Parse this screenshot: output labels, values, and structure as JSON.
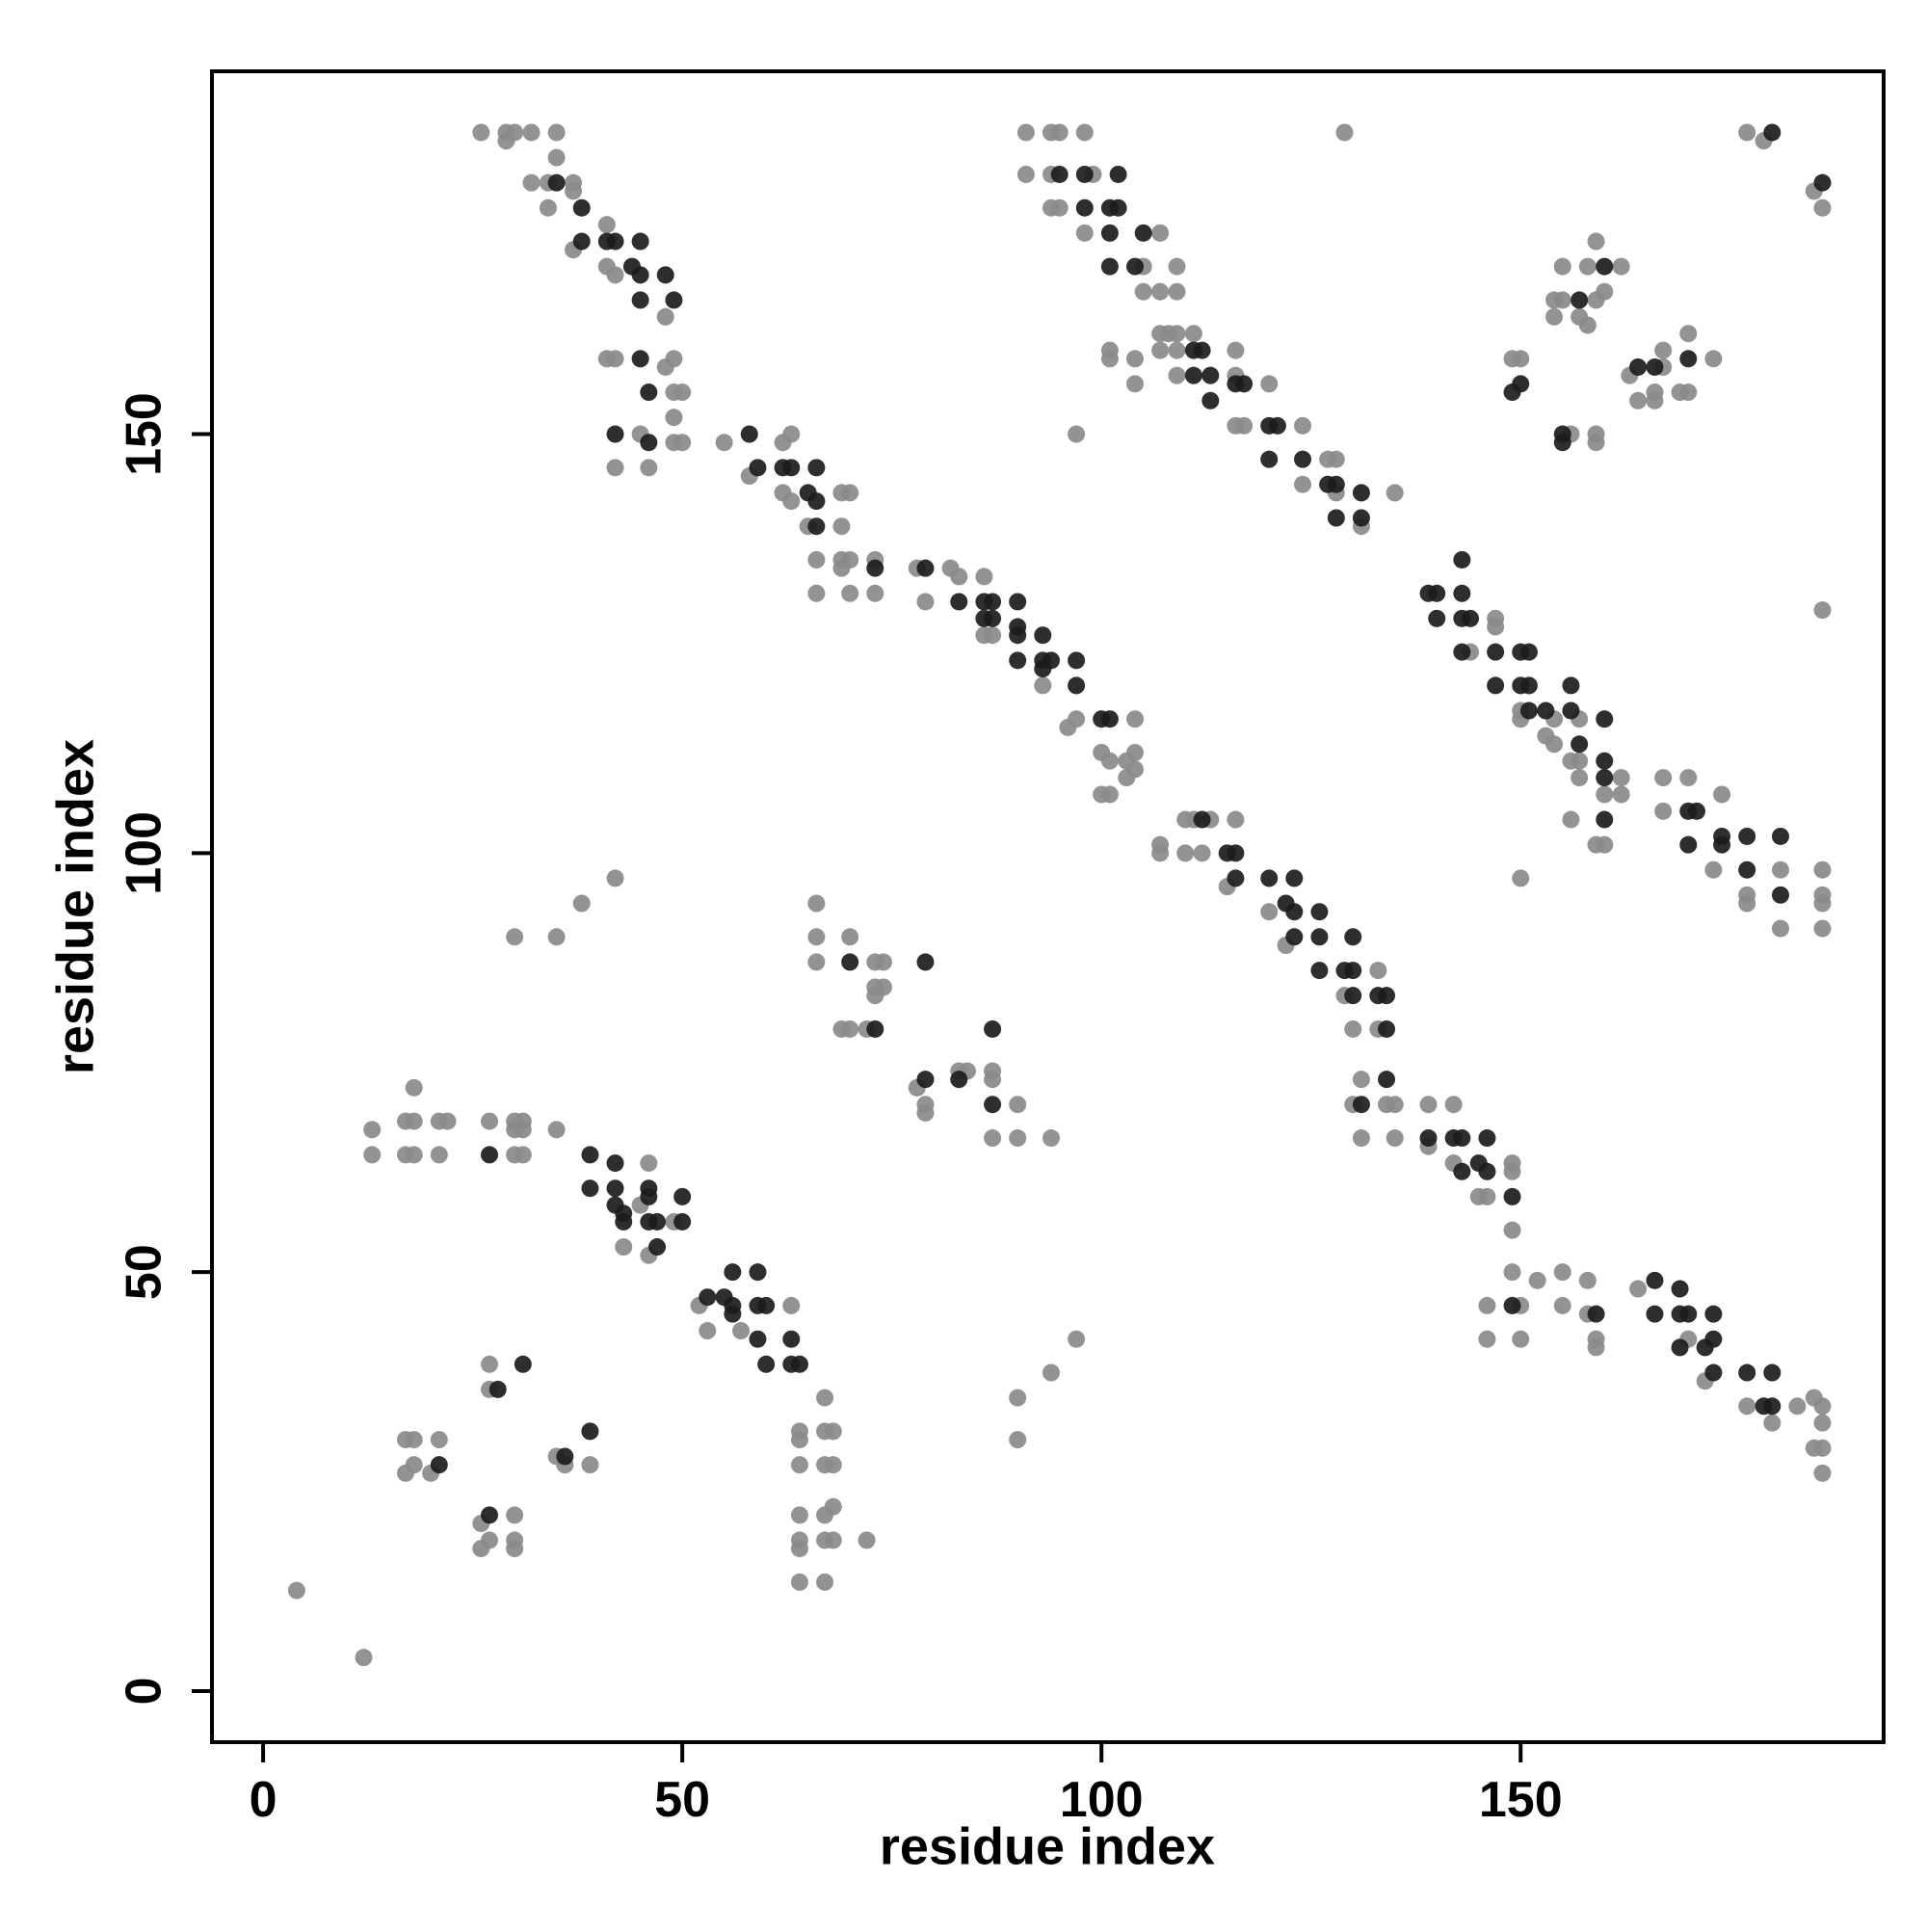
{
  "chart_data": {
    "type": "scatter",
    "x_label": "residue index",
    "y_label": "residue index",
    "xlim": [
      -6.1,
      193.3
    ],
    "ylim": [
      -6.1,
      193.3
    ],
    "xticks": [
      0,
      50,
      100,
      150
    ],
    "yticks": [
      0,
      50,
      100,
      150
    ],
    "series": [
      {
        "color": "#8a8a8a",
        "x": [
          26,
          29,
          30,
          32,
          35,
          29,
          35,
          32,
          34,
          37,
          34,
          37,
          37,
          41,
          41,
          42,
          48,
          41,
          42,
          49,
          49,
          50,
          48,
          49,
          45,
          49,
          50,
          42,
          46,
          55,
          62,
          63,
          58,
          62,
          63,
          69,
          70,
          65,
          69,
          66,
          69,
          70,
          73,
          66,
          70,
          73,
          69,
          78,
          82,
          83,
          79,
          86,
          86,
          87,
          93,
          96,
          97,
          104,
          100,
          101,
          103,
          104,
          100,
          101,
          103,
          104,
          107,
          107,
          110,
          111,
          113,
          110,
          112,
          116,
          115,
          120,
          122,
          133,
          129,
          130,
          133,
          131,
          130,
          134,
          135,
          131,
          135,
          139,
          142,
          139,
          142,
          145,
          146,
          149,
          149,
          149,
          149,
          146,
          150,
          146,
          150,
          152,
          155,
          155,
          158,
          158,
          159,
          159,
          164,
          170,
          172,
          177,
          180,
          183,
          185,
          186,
          186,
          185,
          186,
          186,
          45,
          46,
          43,
          46,
          49,
          53,
          57,
          63,
          52,
          13,
          13,
          17,
          18,
          18,
          17,
          18,
          21,
          22,
          21,
          27,
          30,
          31,
          30,
          31,
          30,
          31,
          35,
          17,
          18,
          21,
          17,
          18,
          20,
          27,
          27,
          26,
          26,
          27,
          30,
          30,
          30,
          35,
          36,
          39,
          64,
          64,
          67,
          67,
          68,
          64,
          67,
          68,
          64,
          64,
          64,
          67,
          68,
          67,
          68,
          72,
          64,
          67,
          4,
          12,
          30,
          35,
          38,
          42,
          90,
          90,
          94,
          97,
          97,
          129,
          150,
          186,
          66,
          66,
          66,
          70,
          73,
          74,
          73,
          74,
          73,
          69,
          70,
          72,
          78,
          79,
          79,
          83,
          84,
          87,
          87,
          87,
          90,
          90,
          94,
          91,
          94,
          95,
          98,
          91,
          94,
          99,
          94,
          95,
          98,
          107,
          105,
          109,
          105,
          107,
          109,
          107,
          108,
          109,
          111,
          101,
          101,
          104,
          104,
          107,
          109,
          116,
          109,
          116,
          120,
          116,
          117,
          124,
          127,
          128,
          124,
          128,
          135,
          131,
          147,
          147,
          144,
          150,
          150,
          154,
          153,
          154,
          157,
          156,
          157,
          162,
          157,
          160,
          162,
          156,
          159,
          160,
          167,
          170,
          167,
          174,
          173,
          181,
          177,
          177,
          181,
          186,
          186,
          186,
          186,
          149,
          150,
          154,
          155,
          155,
          154,
          158,
          159,
          162,
          157,
          158,
          159,
          160,
          156,
          159,
          159,
          163,
          167,
          166,
          167,
          170,
          170,
          169,
          173,
          164,
          166,
          177,
          179,
          185,
          186
        ],
        "values": [
          186,
          186,
          186,
          186,
          186,
          185,
          183,
          180,
          180,
          180,
          177,
          179,
          172,
          175,
          170,
          169,
          164,
          159,
          159,
          159,
          155,
          155,
          158,
          152,
          150,
          149,
          149,
          146,
          146,
          149,
          149,
          150,
          145,
          143,
          142,
          143,
          143,
          139,
          139,
          135,
          135,
          135,
          135,
          131,
          131,
          131,
          134,
          134,
          134,
          133,
          130,
          133,
          126,
          126,
          120,
          115,
          116,
          116,
          112,
          111,
          111,
          112,
          107,
          107,
          109,
          110,
          101,
          100,
          104,
          104,
          104,
          100,
          100,
          104,
          96,
          93,
          89,
          86,
          83,
          79,
          79,
          73,
          70,
          70,
          70,
          66,
          66,
          70,
          70,
          65,
          63,
          59,
          59,
          55,
          62,
          63,
          50,
          46,
          46,
          42,
          42,
          49,
          50,
          46,
          49,
          45,
          42,
          41,
          48,
          42,
          37,
          34,
          32,
          34,
          35,
          34,
          32,
          29,
          29,
          26,
          58,
          63,
          53,
          52,
          56,
          43,
          43,
          46,
          46,
          67,
          64,
          68,
          72,
          68,
          64,
          64,
          68,
          68,
          64,
          68,
          68,
          68,
          67,
          67,
          64,
          64,
          67,
          30,
          30,
          30,
          26,
          27,
          26,
          39,
          36,
          20,
          17,
          18,
          21,
          17,
          18,
          28,
          27,
          27,
          31,
          30,
          35,
          31,
          31,
          27,
          27,
          27,
          21,
          18,
          17,
          21,
          22,
          18,
          18,
          18,
          13,
          13,
          12,
          4,
          90,
          90,
          94,
          97,
          35,
          30,
          38,
          42,
          150,
          186,
          97,
          129,
          94,
          90,
          87,
          90,
          87,
          87,
          84,
          84,
          83,
          79,
          79,
          79,
          72,
          70,
          69,
          74,
          74,
          74,
          73,
          66,
          70,
          66,
          66,
          186,
          186,
          186,
          186,
          181,
          181,
          181,
          177,
          177,
          174,
          174,
          170,
          170,
          167,
          167,
          167,
          162,
          162,
          162,
          162,
          160,
          159,
          159,
          156,
          160,
          160,
          160,
          157,
          157,
          156,
          151,
          151,
          151,
          147,
          147,
          144,
          143,
          143,
          139,
          128,
          127,
          124,
          117,
          116,
          116,
          114,
          113,
          116,
          111,
          111,
          109,
          109,
          107,
          107,
          104,
          101,
          101,
          109,
          109,
          105,
          107,
          98,
          98,
          95,
          94,
          91,
          98,
          95,
          91,
          94,
          159,
          159,
          166,
          170,
          166,
          164,
          170,
          173,
          170,
          164,
          163,
          166,
          167,
          150,
          150,
          149,
          157,
          160,
          155,
          158,
          162,
          155,
          155,
          159,
          154,
          154,
          186,
          185,
          179,
          177
        ]
      },
      {
        "color": "#1c1c1c",
        "x": [
          35,
          38,
          38,
          41,
          42,
          45,
          44,
          45,
          48,
          45,
          49,
          45,
          46,
          42,
          46,
          58,
          59,
          62,
          63,
          66,
          65,
          66,
          66,
          73,
          79,
          83,
          86,
          87,
          90,
          86,
          87,
          90,
          90,
          93,
          90,
          93,
          94,
          97,
          93,
          97,
          100,
          101,
          112,
          115,
          116,
          116,
          120,
          123,
          122,
          123,
          126,
          123,
          126,
          130,
          126,
          129,
          130,
          130,
          133,
          134,
          134,
          134,
          131,
          139,
          142,
          143,
          146,
          143,
          146,
          145,
          149,
          149,
          159,
          166,
          166,
          169,
          169,
          170,
          169,
          173,
          172,
          173,
          173,
          177,
          180,
          179,
          180,
          39,
          39,
          42,
          42,
          42,
          43,
          46,
          46,
          46,
          47,
          50,
          50,
          47,
          43,
          53,
          56,
          59,
          55,
          56,
          59,
          60,
          56,
          59,
          60,
          63,
          63,
          64,
          27,
          31,
          28,
          27,
          21,
          36,
          39,
          70,
          73,
          79,
          79,
          83,
          87,
          87,
          95,
          98,
          102,
          98,
          101,
          102,
          101,
          105,
          101,
          104,
          111,
          112,
          111,
          113,
          113,
          116,
          117,
          120,
          121,
          120,
          124,
          127,
          128,
          131,
          128,
          131,
          139,
          140,
          143,
          143,
          140,
          143,
          144,
          143,
          147,
          150,
          151,
          147,
          150,
          151,
          151,
          153,
          156,
          156,
          157,
          160,
          160,
          160,
          160,
          170,
          171,
          170,
          174,
          177,
          181,
          177,
          181,
          174,
          149,
          150,
          157,
          160,
          155,
          155,
          164,
          166,
          170,
          180,
          186
        ],
        "values": [
          180,
          177,
          173,
          173,
          173,
          173,
          170,
          169,
          169,
          166,
          166,
          159,
          155,
          150,
          149,
          150,
          146,
          146,
          146,
          146,
          143,
          142,
          139,
          134,
          134,
          130,
          130,
          130,
          130,
          128,
          128,
          127,
          126,
          126,
          123,
          123,
          123,
          123,
          122,
          120,
          116,
          116,
          104,
          100,
          100,
          97,
          97,
          97,
          94,
          93,
          93,
          90,
          90,
          90,
          86,
          86,
          86,
          83,
          83,
          83,
          79,
          73,
          70,
          66,
          66,
          66,
          66,
          62,
          62,
          63,
          59,
          46,
          45,
          49,
          45,
          48,
          45,
          45,
          41,
          45,
          41,
          42,
          38,
          38,
          38,
          34,
          34,
          64,
          60,
          63,
          60,
          58,
          57,
          60,
          59,
          56,
          56,
          56,
          59,
          53,
          56,
          47,
          50,
          50,
          47,
          46,
          46,
          46,
          45,
          42,
          39,
          42,
          39,
          39,
          64,
          39,
          36,
          21,
          27,
          28,
          31,
          87,
          79,
          87,
          73,
          73,
          79,
          70,
          181,
          181,
          181,
          177,
          177,
          177,
          174,
          174,
          170,
          170,
          160,
          160,
          157,
          157,
          154,
          156,
          156,
          151,
          151,
          147,
          147,
          144,
          144,
          143,
          140,
          140,
          131,
          131,
          135,
          131,
          128,
          128,
          128,
          124,
          124,
          124,
          124,
          120,
          120,
          120,
          117,
          117,
          120,
          117,
          113,
          116,
          111,
          109,
          104,
          105,
          105,
          101,
          101,
          102,
          102,
          98,
          95,
          102,
          155,
          156,
          166,
          170,
          150,
          149,
          158,
          158,
          159,
          186,
          180
        ]
      }
    ]
  }
}
